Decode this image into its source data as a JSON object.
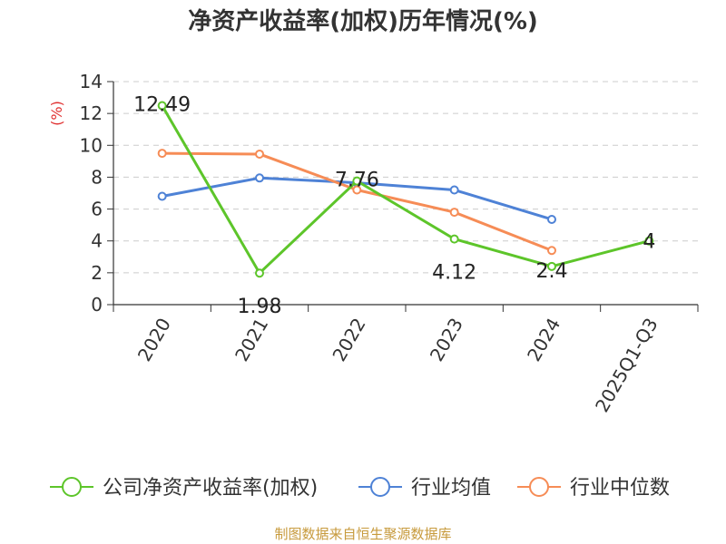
{
  "chart_data": {
    "type": "line",
    "title": "净资产收益率(加权)历年情况(%)",
    "ylabel": "(%)",
    "ylim": [
      0,
      14
    ],
    "yticks": [
      0,
      2,
      4,
      6,
      8,
      10,
      12,
      14
    ],
    "grid": true,
    "categories": [
      "2020",
      "2021",
      "2022",
      "2023",
      "2024",
      "2025Q1-Q3"
    ],
    "series": [
      {
        "name": "公司净资产收益率(加权)",
        "color": "#5dc52a",
        "values": [
          12.49,
          1.98,
          7.76,
          4.12,
          2.4,
          4
        ],
        "labels": [
          "12.49",
          "1.98",
          "7.76",
          "4.12",
          "2.4",
          "4"
        ]
      },
      {
        "name": "行业均值",
        "color": "#4e82d6",
        "values": [
          6.8,
          7.95,
          7.65,
          7.2,
          5.35,
          null
        ]
      },
      {
        "name": "行业中位数",
        "color": "#f68c56",
        "values": [
          9.5,
          9.45,
          7.2,
          5.8,
          3.4,
          null
        ]
      }
    ],
    "legend_position": "bottom"
  },
  "source": {
    "text": "制图数据来自恒生聚源数据库",
    "color": "#c79a3c"
  },
  "colors": {
    "axis": "#333333",
    "grid": "#cccccc",
    "unit": "#e03030"
  }
}
